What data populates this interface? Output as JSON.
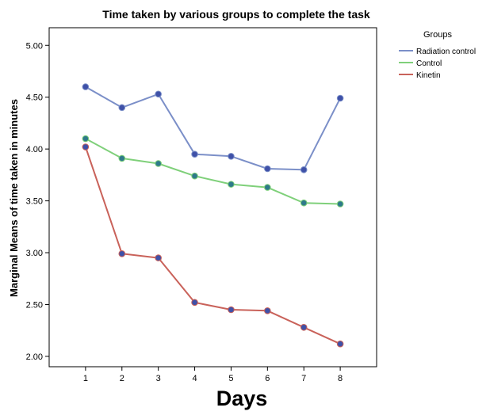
{
  "chart_data": {
    "type": "line",
    "title": "Time taken by various groups to complete the task",
    "xlabel": "Days",
    "ylabel": "Marginal Means of time taken in minutes",
    "x": [
      1,
      2,
      3,
      4,
      5,
      6,
      7,
      8
    ],
    "x_tick_labels": [
      "1",
      "2",
      "3",
      "4",
      "5",
      "6",
      "7",
      "8"
    ],
    "y_tick_values": [
      2.0,
      2.5,
      3.0,
      3.5,
      4.0,
      4.5,
      5.0
    ],
    "y_tick_labels": [
      "2.00",
      "2.50",
      "3.00",
      "3.50",
      "4.00",
      "4.50",
      "5.00"
    ],
    "xlim": [
      0,
      9
    ],
    "ylim": [
      1.9,
      5.17
    ],
    "grid": false,
    "legend": {
      "title": "Groups",
      "placement": "right"
    },
    "series": [
      {
        "name": "Radiation control",
        "color": "#7b8fc8",
        "marker_color": "#3f51a8",
        "values": [
          4.6,
          4.4,
          4.53,
          3.95,
          3.93,
          3.81,
          3.8,
          4.49
        ]
      },
      {
        "name": "Control",
        "color": "#7fd07a",
        "marker_color": "#2e7a8a",
        "values": [
          4.1,
          3.91,
          3.86,
          3.74,
          3.66,
          3.63,
          3.48,
          3.47
        ]
      },
      {
        "name": "Kinetin",
        "color": "#c9625a",
        "marker_color": "#3f51a8",
        "values": [
          4.02,
          2.99,
          2.95,
          2.52,
          2.45,
          2.44,
          2.28,
          2.12
        ]
      }
    ]
  }
}
